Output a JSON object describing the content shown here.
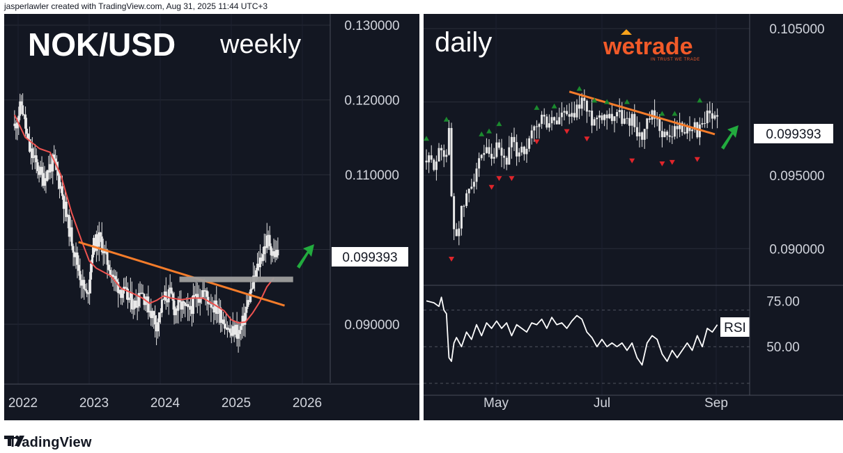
{
  "header": {
    "text": "jasperlawler created with TradingView.com, Aug 31, 2025 11:44 UTC+3"
  },
  "footer": {
    "brand": "TradingView"
  },
  "colors": {
    "background": "#131722",
    "candle": "#e8e8e8",
    "sma": "#ef5350",
    "trendline": "#f57c2a",
    "resistance_zone": "#9e9e9e",
    "arrow": "#22ab3e",
    "fractal_up": "#1b8a2e",
    "fractal_down": "#e0252b",
    "rsi": "#ffffff",
    "wetrade": "#f15a29"
  },
  "left": {
    "title": "NOK/USD",
    "subtitle": "weekly",
    "price_label": "0.099393"
  },
  "right": {
    "title": "daily",
    "logo": "wetrade",
    "logo_tagline": "IN TRUST WE TRADE",
    "price_label": "0.099393",
    "rsi_label": "RSI"
  },
  "chart_data": [
    {
      "type": "candlestick",
      "timeframe": "weekly",
      "title": "NOK/USD",
      "subtitle": "weekly",
      "x_ticks": [
        "2022",
        "2023",
        "2024",
        "2025",
        "2026"
      ],
      "y_ticks": [
        "0.130000",
        "0.120000",
        "0.110000",
        "0.090000"
      ],
      "ylim": [
        0.082,
        0.1315
      ],
      "last_price": 0.099393,
      "close_path": [
        [
          2021.95,
          0.1165
        ],
        [
          2022.05,
          0.1195
        ],
        [
          2022.15,
          0.1135
        ],
        [
          2022.25,
          0.1115
        ],
        [
          2022.35,
          0.1095
        ],
        [
          2022.5,
          0.1118
        ],
        [
          2022.6,
          0.1085
        ],
        [
          2022.7,
          0.1035
        ],
        [
          2022.8,
          0.0995
        ],
        [
          2022.9,
          0.0955
        ],
        [
          2022.97,
          0.0935
        ],
        [
          2023.05,
          0.1005
        ],
        [
          2023.15,
          0.1015
        ],
        [
          2023.25,
          0.0985
        ],
        [
          2023.35,
          0.096
        ],
        [
          2023.45,
          0.0945
        ],
        [
          2023.55,
          0.0935
        ],
        [
          2023.65,
          0.0925
        ],
        [
          2023.72,
          0.095
        ],
        [
          2023.8,
          0.093
        ],
        [
          2023.88,
          0.0915
        ],
        [
          2023.95,
          0.09
        ],
        [
          2024.05,
          0.0935
        ],
        [
          2024.15,
          0.094
        ],
        [
          2024.2,
          0.092
        ],
        [
          2024.3,
          0.0925
        ],
        [
          2024.4,
          0.0915
        ],
        [
          2024.5,
          0.0935
        ],
        [
          2024.6,
          0.0945
        ],
        [
          2024.7,
          0.093
        ],
        [
          2024.8,
          0.092
        ],
        [
          2024.9,
          0.0905
        ],
        [
          2025.0,
          0.0885
        ],
        [
          2025.05,
          0.0895
        ],
        [
          2025.1,
          0.0885
        ],
        [
          2025.17,
          0.0905
        ],
        [
          2025.25,
          0.0935
        ],
        [
          2025.32,
          0.096
        ],
        [
          2025.4,
          0.0985
        ],
        [
          2025.47,
          0.1005
        ],
        [
          2025.52,
          0.1015
        ],
        [
          2025.58,
          0.0995
        ],
        [
          2025.65,
          0.0994
        ]
      ],
      "sma_path": [
        [
          2021.95,
          0.118
        ],
        [
          2022.1,
          0.115
        ],
        [
          2022.3,
          0.1135
        ],
        [
          2022.45,
          0.113
        ],
        [
          2022.6,
          0.11
        ],
        [
          2022.75,
          0.105
        ],
        [
          2022.9,
          0.101
        ],
        [
          2023.0,
          0.0985
        ],
        [
          2023.1,
          0.0975
        ],
        [
          2023.3,
          0.0965
        ],
        [
          2023.45,
          0.0948
        ],
        [
          2023.6,
          0.0942
        ],
        [
          2023.75,
          0.0935
        ],
        [
          2023.85,
          0.0928
        ],
        [
          2023.95,
          0.0932
        ],
        [
          2024.05,
          0.0938
        ],
        [
          2024.15,
          0.0935
        ],
        [
          2024.3,
          0.0933
        ],
        [
          2024.45,
          0.0935
        ],
        [
          2024.6,
          0.0935
        ],
        [
          2024.75,
          0.0927
        ],
        [
          2024.9,
          0.0918
        ],
        [
          2025.0,
          0.0906
        ],
        [
          2025.1,
          0.0902
        ],
        [
          2025.2,
          0.0903
        ],
        [
          2025.3,
          0.0915
        ],
        [
          2025.4,
          0.093
        ],
        [
          2025.5,
          0.095
        ],
        [
          2025.6,
          0.0962
        ]
      ],
      "trendline": [
        [
          2022.85,
          0.101
        ],
        [
          2025.75,
          0.0925
        ]
      ],
      "resistance_zone": {
        "x": [
          2024.27,
          2025.87
        ],
        "y": 0.096
      },
      "arrow": "up"
    },
    {
      "type": "candlestick",
      "timeframe": "daily",
      "title": "daily",
      "x_ticks": [
        "May",
        "Jul",
        "Sep"
      ],
      "y_ticks": [
        "0.105000",
        "0.095000",
        "0.090000"
      ],
      "ylim": [
        0.0875,
        0.106
      ],
      "last_price": 0.099393,
      "close_path": [
        [
          0,
          0.096
        ],
        [
          3,
          0.0958
        ],
        [
          6,
          0.0968
        ],
        [
          8,
          0.0965
        ],
        [
          9,
          0.098
        ],
        [
          10,
          0.0935
        ],
        [
          11,
          0.0915
        ],
        [
          12,
          0.091
        ],
        [
          14,
          0.0925
        ],
        [
          16,
          0.0935
        ],
        [
          18,
          0.0945
        ],
        [
          20,
          0.0955
        ],
        [
          22,
          0.096
        ],
        [
          24,
          0.0965
        ],
        [
          26,
          0.0958
        ],
        [
          28,
          0.0968
        ],
        [
          30,
          0.0962
        ],
        [
          32,
          0.096
        ],
        [
          34,
          0.0972
        ],
        [
          36,
          0.0965
        ],
        [
          38,
          0.097
        ],
        [
          40,
          0.0965
        ],
        [
          42,
          0.0978
        ],
        [
          44,
          0.0982
        ],
        [
          46,
          0.099
        ],
        [
          48,
          0.0985
        ],
        [
          50,
          0.0988
        ],
        [
          52,
          0.0986
        ],
        [
          54,
          0.0992
        ],
        [
          56,
          0.099
        ],
        [
          58,
          0.0988
        ],
        [
          60,
          0.0995
        ],
        [
          62,
          0.1002
        ],
        [
          63,
          0.1
        ],
        [
          64,
          0.0993
        ],
        [
          66,
          0.0988
        ],
        [
          68,
          0.099
        ],
        [
          70,
          0.0992
        ],
        [
          72,
          0.0992
        ],
        [
          74,
          0.099
        ],
        [
          76,
          0.0994
        ],
        [
          78,
          0.0988
        ],
        [
          80,
          0.0986
        ],
        [
          82,
          0.099
        ],
        [
          84,
          0.098
        ],
        [
          86,
          0.0975
        ],
        [
          88,
          0.0985
        ],
        [
          90,
          0.099
        ],
        [
          92,
          0.0985
        ],
        [
          94,
          0.098
        ],
        [
          96,
          0.0975
        ],
        [
          98,
          0.0978
        ],
        [
          100,
          0.0985
        ],
        [
          102,
          0.098
        ],
        [
          104,
          0.0982
        ],
        [
          106,
          0.0985
        ],
        [
          108,
          0.098
        ],
        [
          110,
          0.0982
        ],
        [
          112,
          0.099
        ],
        [
          114,
          0.0988
        ],
        [
          116,
          0.0994
        ]
      ],
      "trendline": [
        [
          57,
          0.1007
        ],
        [
          115,
          0.0978
        ]
      ],
      "fractals_up": [
        [
          0,
          0.0975
        ],
        [
          8,
          0.0988
        ],
        [
          22,
          0.0978
        ],
        [
          25,
          0.098
        ],
        [
          29,
          0.0985
        ],
        [
          44,
          0.0996
        ],
        [
          51,
          0.0997
        ],
        [
          61,
          0.1009
        ],
        [
          67,
          0.1001
        ],
        [
          72,
          0.1
        ],
        [
          80,
          0.1
        ],
        [
          94,
          0.0992
        ],
        [
          99,
          0.0992
        ],
        [
          109,
          0.1001
        ]
      ],
      "fractals_down": [
        [
          10,
          0.0893
        ],
        [
          26,
          0.0942
        ],
        [
          29,
          0.0948
        ],
        [
          34,
          0.0948
        ],
        [
          44,
          0.0973
        ],
        [
          56,
          0.098
        ],
        [
          64,
          0.0975
        ],
        [
          82,
          0.096
        ],
        [
          94,
          0.0958
        ],
        [
          98,
          0.0959
        ],
        [
          108,
          0.0961
        ]
      ],
      "arrow": "up",
      "rsi": {
        "label": "RSI",
        "y_ticks": [
          "75.00",
          "50.00"
        ],
        "levels": [
          70,
          50,
          30
        ],
        "ylim": [
          25,
          82
        ],
        "path": [
          [
            0,
            75
          ],
          [
            3,
            74
          ],
          [
            5,
            72
          ],
          [
            6,
            77
          ],
          [
            7,
            70
          ],
          [
            8,
            68
          ],
          [
            9,
            44
          ],
          [
            10,
            42
          ],
          [
            11,
            52
          ],
          [
            12,
            55
          ],
          [
            14,
            50
          ],
          [
            16,
            58
          ],
          [
            18,
            54
          ],
          [
            20,
            62
          ],
          [
            22,
            56
          ],
          [
            24,
            63
          ],
          [
            26,
            60
          ],
          [
            28,
            64
          ],
          [
            30,
            60
          ],
          [
            32,
            63
          ],
          [
            34,
            56
          ],
          [
            36,
            62
          ],
          [
            38,
            60
          ],
          [
            40,
            58
          ],
          [
            42,
            63
          ],
          [
            44,
            62
          ],
          [
            46,
            65
          ],
          [
            48,
            60
          ],
          [
            50,
            66
          ],
          [
            52,
            62
          ],
          [
            54,
            63
          ],
          [
            56,
            60
          ],
          [
            58,
            64
          ],
          [
            60,
            67
          ],
          [
            62,
            65
          ],
          [
            64,
            58
          ],
          [
            66,
            55
          ],
          [
            68,
            50
          ],
          [
            70,
            54
          ],
          [
            72,
            50
          ],
          [
            74,
            52
          ],
          [
            76,
            50
          ],
          [
            78,
            52
          ],
          [
            80,
            48
          ],
          [
            82,
            52
          ],
          [
            84,
            44
          ],
          [
            86,
            40
          ],
          [
            88,
            52
          ],
          [
            90,
            56
          ],
          [
            92,
            54
          ],
          [
            94,
            46
          ],
          [
            96,
            42
          ],
          [
            98,
            48
          ],
          [
            100,
            44
          ],
          [
            102,
            48
          ],
          [
            104,
            52
          ],
          [
            106,
            48
          ],
          [
            108,
            56
          ],
          [
            110,
            50
          ],
          [
            112,
            60
          ],
          [
            114,
            58
          ],
          [
            116,
            62
          ]
        ]
      }
    }
  ]
}
